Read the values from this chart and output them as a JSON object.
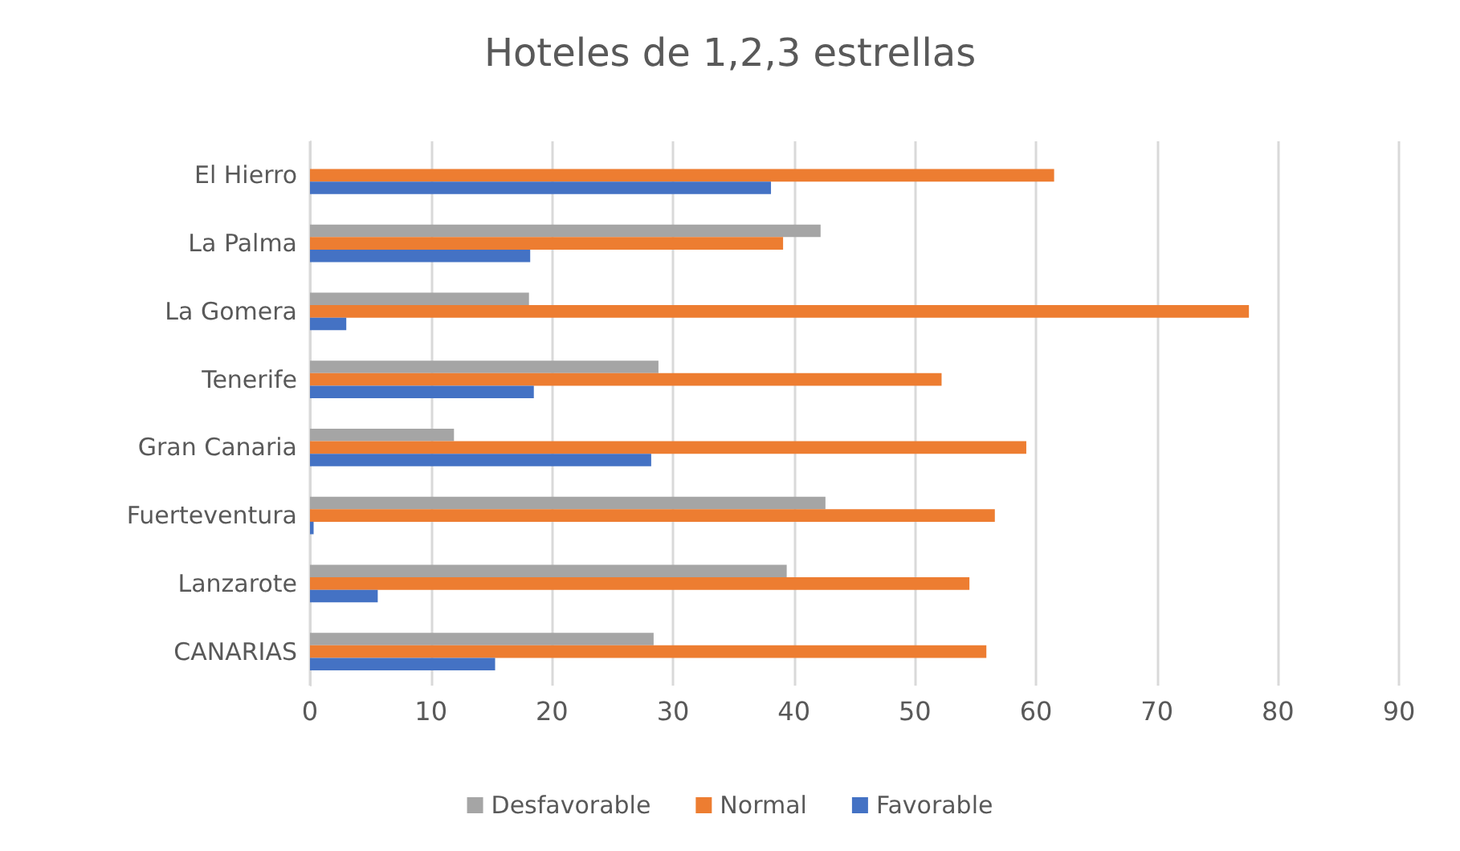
{
  "chart_data": {
    "type": "bar",
    "orientation": "horizontal",
    "title": "Hoteles de 1,2,3 estrellas",
    "categories": [
      "El Hierro",
      "La Palma",
      "La Gomera",
      "Tenerife",
      "Gran Canaria",
      "Fuerteventura",
      "Lanzarote",
      "CANARIAS"
    ],
    "series": [
      {
        "name": "Desfavorable",
        "color": "#a5a5a5",
        "values": [
          0,
          42.2,
          18.1,
          28.8,
          11.9,
          42.6,
          39.4,
          28.4
        ]
      },
      {
        "name": "Normal",
        "color": "#ed7d31",
        "values": [
          61.5,
          39.1,
          77.6,
          52.2,
          59.2,
          56.6,
          54.5,
          55.9
        ]
      },
      {
        "name": "Favorable",
        "color": "#4472c4",
        "values": [
          38.1,
          18.2,
          3,
          18.5,
          28.2,
          0.3,
          5.6,
          15.3
        ]
      }
    ],
    "xlim": [
      0,
      90
    ],
    "xticks": [
      0,
      10,
      20,
      30,
      40,
      50,
      60,
      70,
      80,
      90
    ],
    "grid": "x",
    "legend": "bottom"
  }
}
